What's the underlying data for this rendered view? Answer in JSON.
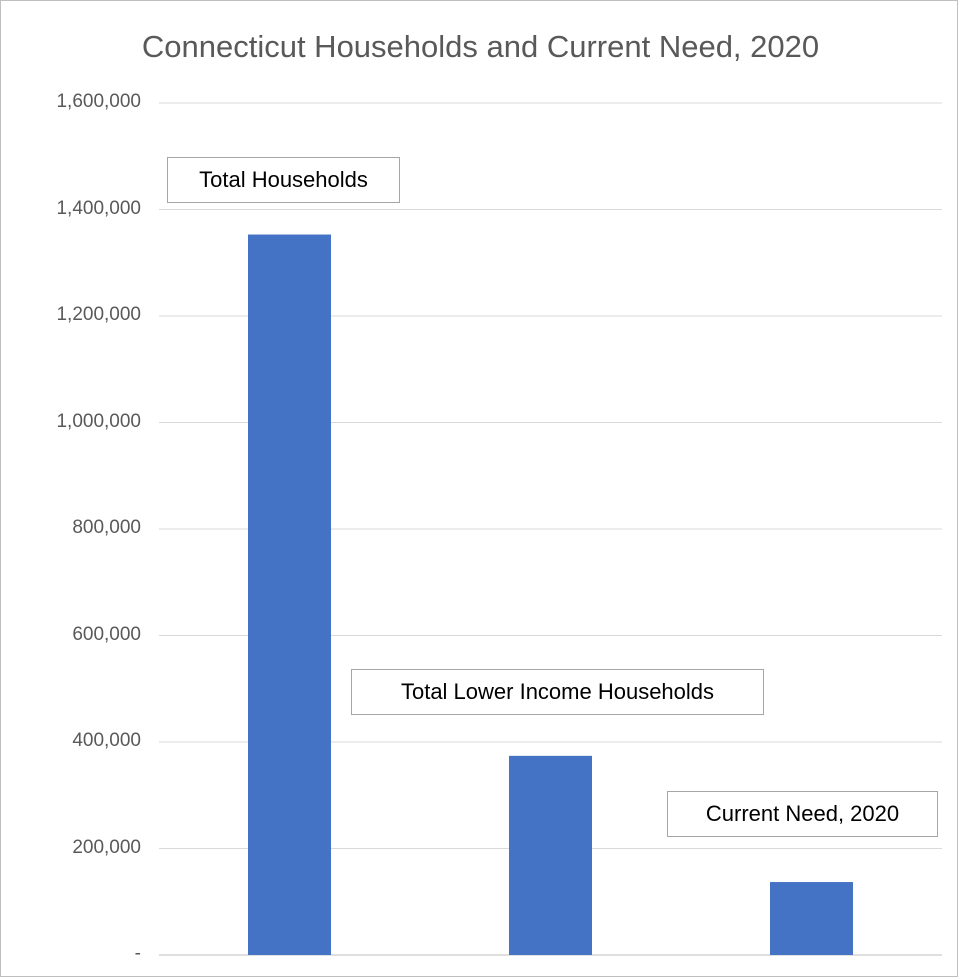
{
  "chart_data": {
    "type": "bar",
    "title": "Connecticut Households and Current Need, 2020",
    "categories": [
      "Total Households",
      "Total Lower Income Households",
      "Current Need, 2020"
    ],
    "values": [
      1353000,
      374000,
      137000
    ],
    "ylim": [
      0,
      1600000
    ],
    "yticks": [
      0,
      200000,
      400000,
      600000,
      800000,
      1000000,
      1200000,
      1400000,
      1600000
    ],
    "ytick_labels": [
      "-",
      "200,000",
      "400,000",
      "600,000",
      "800,000",
      "1,000,000",
      "1,200,000",
      "1,400,000",
      "1,600,000"
    ],
    "bar_color": "#4472c4",
    "grid": true,
    "legend": "none",
    "xlabel": "",
    "ylabel": ""
  }
}
